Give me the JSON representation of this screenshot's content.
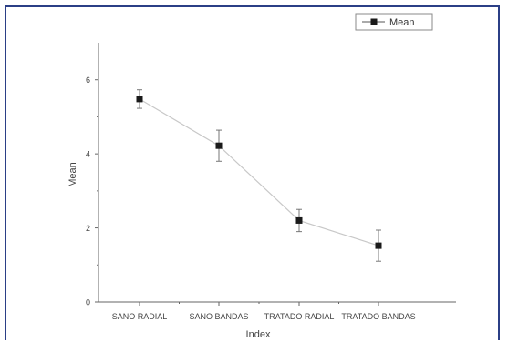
{
  "chart_data": {
    "type": "line",
    "title": "",
    "xlabel": "Index",
    "ylabel": "Mean",
    "categories": [
      "SANO RADIAL",
      "SANO BANDAS",
      "TRATADO RADIAL",
      "TRATADO BANDAS"
    ],
    "ylim": [
      0,
      7
    ],
    "yticks": [
      0,
      2,
      4,
      6
    ],
    "series": [
      {
        "name": "Mean",
        "values": [
          5.48,
          4.22,
          2.2,
          1.52
        ],
        "error": [
          0.25,
          0.42,
          0.3,
          0.42
        ]
      }
    ],
    "legend_position": "top-right",
    "grid": false
  },
  "colors": {
    "frame": "#2b3f86",
    "line": "#c8c8c8",
    "marker": "#1a1a1a",
    "axis": "#666666",
    "text": "#444444"
  }
}
